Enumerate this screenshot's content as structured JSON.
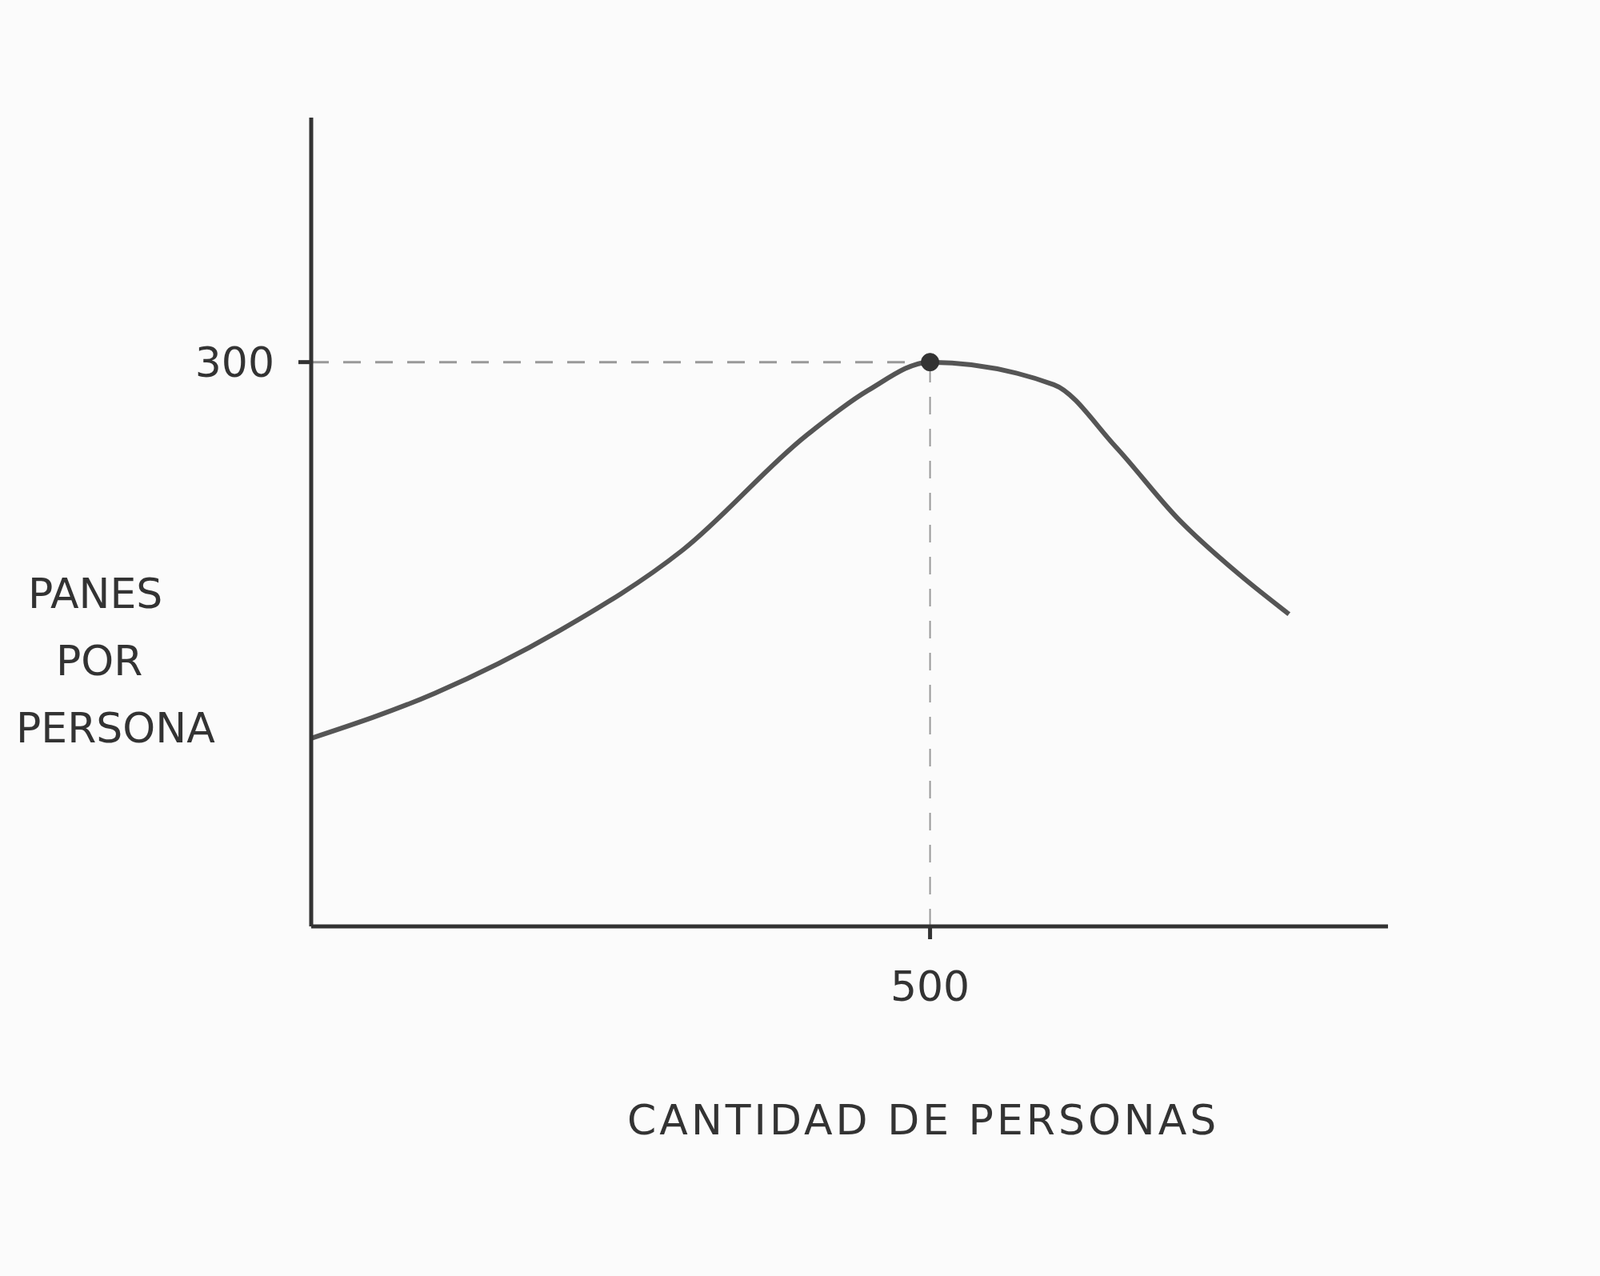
{
  "chart_data": {
    "type": "line",
    "x_label": "CANTIDAD DE PERSONAS",
    "y_label": "PANES POR PERSONA",
    "x": [
      0,
      100,
      200,
      300,
      400,
      450,
      500,
      600,
      650,
      700,
      750,
      790
    ],
    "values": [
      100,
      124,
      157,
      200,
      261,
      285,
      300,
      288,
      255,
      217,
      187,
      166
    ],
    "color": "#555555",
    "xlim": [
      0,
      870
    ],
    "ylim": [
      0,
      430
    ],
    "xticks": [
      500
    ],
    "yticks": [
      300
    ],
    "grid": false
  }
}
